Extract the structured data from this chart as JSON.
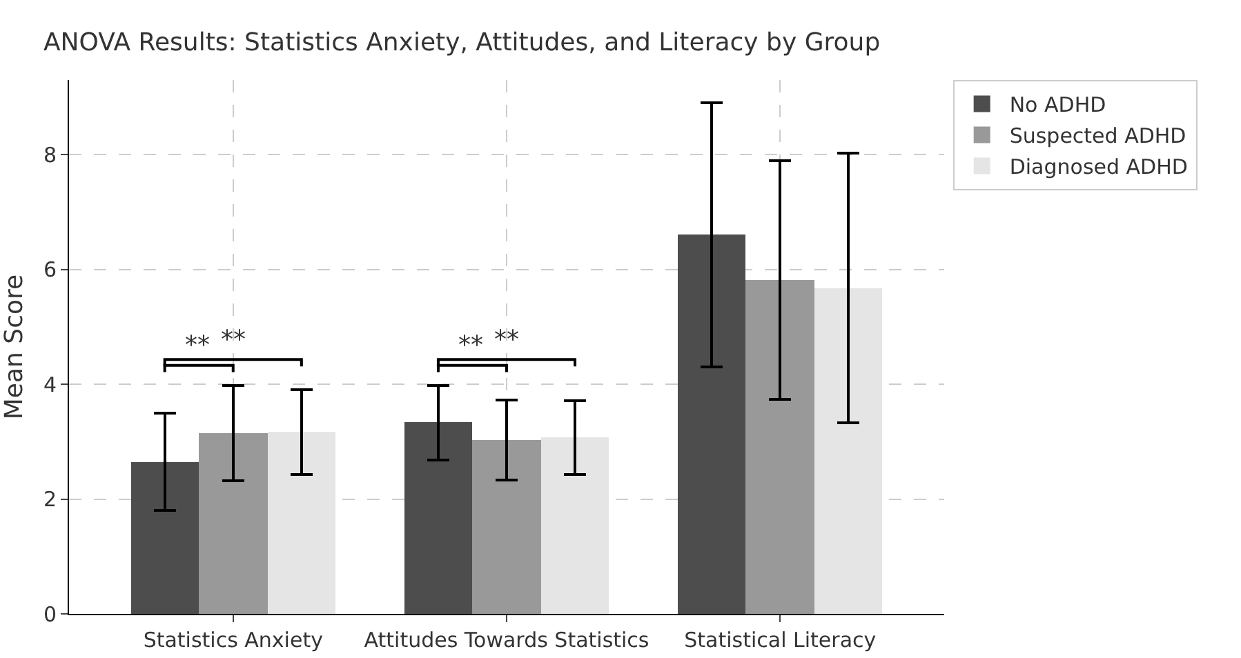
{
  "chart_data": {
    "type": "bar",
    "title": "ANOVA Results: Statistics Anxiety, Attitudes, and Literacy by Group",
    "ylabel": "Mean Score",
    "categories": [
      "Statistics Anxiety",
      "Attitudes Towards Statistics",
      "Statistical Literacy"
    ],
    "series": [
      {
        "name": "No ADHD",
        "color": "#4d4d4d",
        "values": [
          2.65,
          3.33,
          6.6
        ],
        "errors": [
          0.85,
          0.65,
          2.3
        ]
      },
      {
        "name": "Suspected ADHD",
        "color": "#999999",
        "values": [
          3.15,
          3.03,
          5.82
        ],
        "errors": [
          0.83,
          0.7,
          2.08
        ]
      },
      {
        "name": "Diagnosed ADHD",
        "color": "#e5e5e5",
        "values": [
          3.17,
          3.07,
          5.68
        ],
        "errors": [
          0.74,
          0.64,
          2.35
        ]
      }
    ],
    "annotations": [
      "**",
      "**",
      "**",
      "**"
    ],
    "ylim": [
      0,
      9.3
    ],
    "yticks": [
      0,
      2,
      4,
      6,
      8
    ],
    "grid": true,
    "legend": "top right"
  }
}
